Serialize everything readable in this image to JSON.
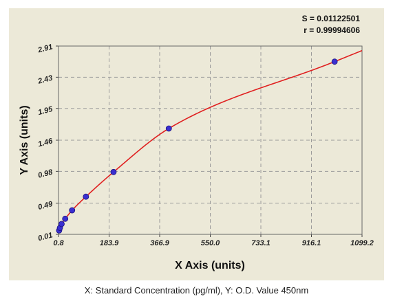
{
  "chart_data": {
    "type": "scatter",
    "xlabel": "X Axis (units)",
    "ylabel": "Y Axis (units)",
    "xlim": [
      0.8,
      1099.2
    ],
    "ylim": [
      0.01,
      2.91
    ],
    "x_ticks": [
      "0.8",
      "183.9",
      "366.9",
      "550.0",
      "733.1",
      "916.1",
      "1099.2"
    ],
    "y_ticks": [
      "0.01",
      "0.49",
      "0.98",
      "1.46",
      "1.95",
      "2.43",
      "2.91"
    ],
    "grid": true,
    "stats": {
      "s": "S = 0.01122501",
      "r": "r = 0.99994606"
    },
    "points": {
      "x": [
        3,
        6,
        12,
        25,
        50,
        100,
        200,
        400,
        1000
      ],
      "y": [
        0.07,
        0.11,
        0.17,
        0.25,
        0.38,
        0.59,
        0.97,
        1.64,
        2.67
      ]
    },
    "curve_color": "#e02020",
    "point_color": "#3a2fd0"
  },
  "caption": "X: Standard Concentration (pg/ml), Y: O.D. Value 450nm"
}
